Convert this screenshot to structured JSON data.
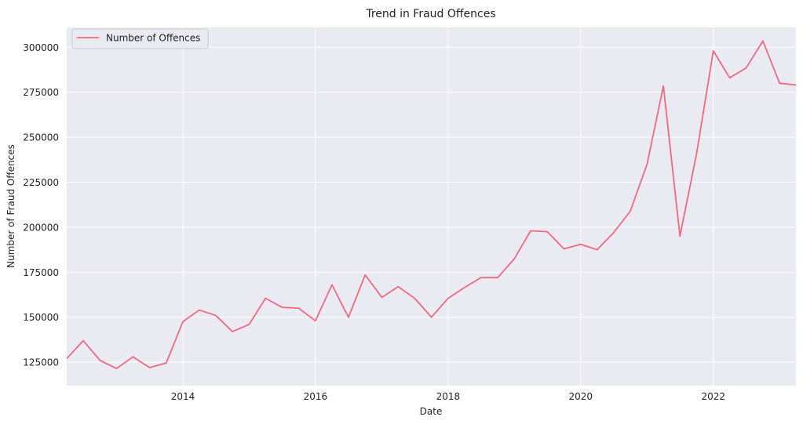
{
  "chart_data": {
    "type": "line",
    "title": "Trend in Fraud Offences",
    "xlabel": "Date",
    "ylabel": "Number of Fraud Offences",
    "xlim": [
      "2012-04-01",
      "2023-04-01"
    ],
    "ylim": [
      112000,
      311000
    ],
    "x_ticks": [
      "2014",
      "2016",
      "2018",
      "2020",
      "2022"
    ],
    "y_ticks": [
      "125000",
      "150000",
      "175000",
      "200000",
      "225000",
      "250000",
      "275000",
      "300000"
    ],
    "grid": true,
    "legend_position": "top-left",
    "series": [
      {
        "name": "Number of Offences",
        "color": "#f0697f",
        "x": [
          "2012-04-01",
          "2012-07-01",
          "2012-10-01",
          "2013-01-01",
          "2013-04-01",
          "2013-07-01",
          "2013-10-01",
          "2014-01-01",
          "2014-04-01",
          "2014-07-01",
          "2014-10-01",
          "2015-01-01",
          "2015-04-01",
          "2015-07-01",
          "2015-10-01",
          "2016-01-01",
          "2016-04-01",
          "2016-07-01",
          "2016-10-01",
          "2017-01-01",
          "2017-04-01",
          "2017-07-01",
          "2017-10-01",
          "2018-01-01",
          "2018-04-01",
          "2018-07-01",
          "2018-10-01",
          "2019-01-01",
          "2019-04-01",
          "2019-07-01",
          "2019-10-01",
          "2020-01-01",
          "2020-04-01",
          "2020-07-01",
          "2020-10-01",
          "2021-01-01",
          "2021-04-01",
          "2021-07-01",
          "2021-10-01",
          "2022-01-01",
          "2022-04-01",
          "2022-07-01",
          "2022-10-01",
          "2023-01-01",
          "2023-04-01"
        ],
        "y": [
          127000,
          137000,
          126000,
          121500,
          128000,
          122000,
          124500,
          147500,
          154000,
          151000,
          142000,
          146000,
          160500,
          155500,
          155000,
          148000,
          168000,
          150000,
          173500,
          161000,
          167000,
          160500,
          150000,
          160500,
          166500,
          172000,
          172000,
          182500,
          198000,
          197500,
          188000,
          190500,
          187500,
          197000,
          209000,
          235000,
          278500,
          195000,
          241000,
          298000,
          283000,
          288500,
          303500,
          280000,
          279000
        ]
      }
    ]
  }
}
